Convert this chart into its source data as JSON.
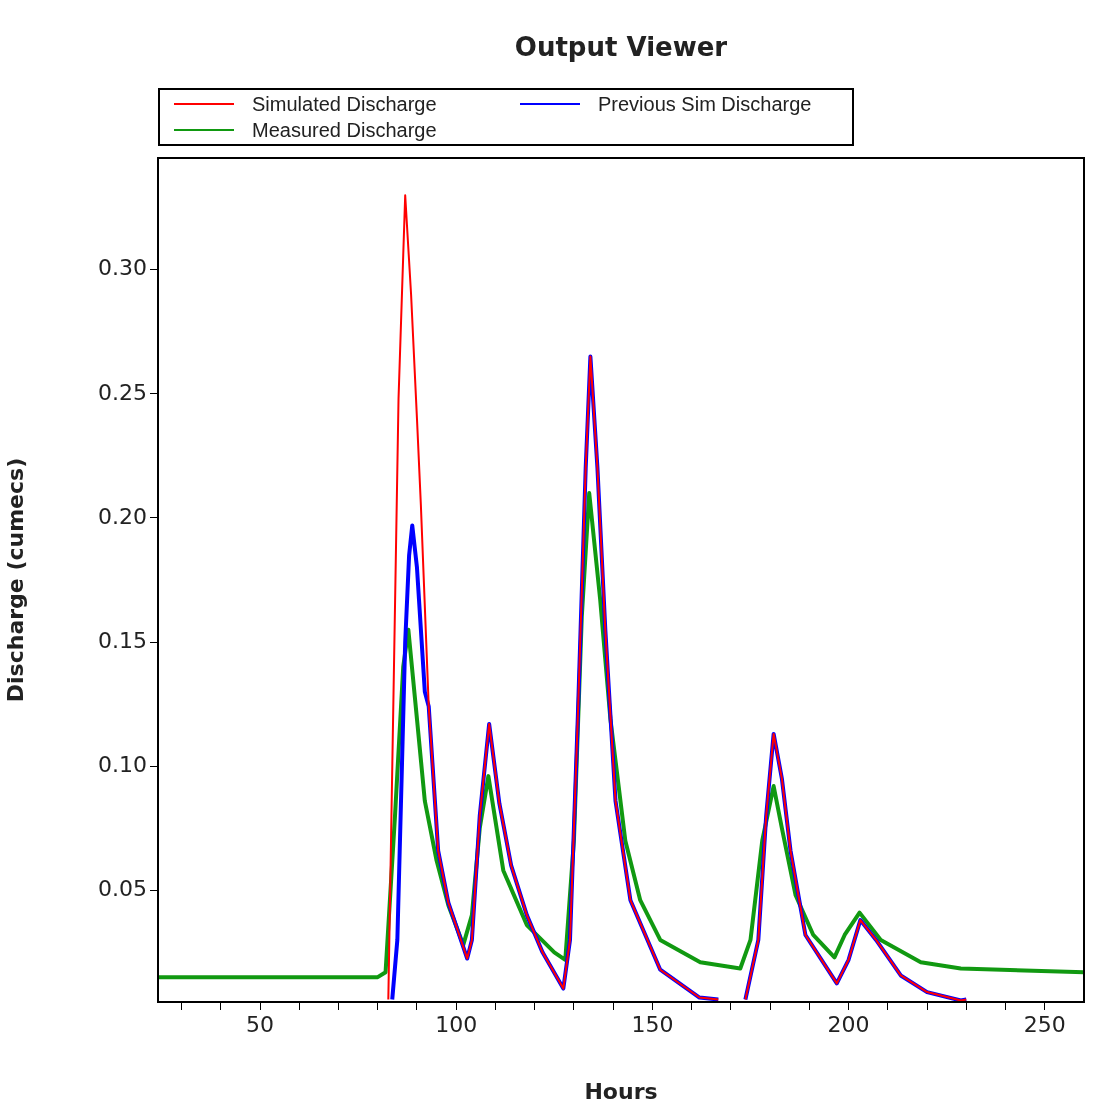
{
  "chart_data": {
    "type": "line",
    "title": "Output Viewer",
    "xlabel": "Hours",
    "ylabel": "Discharge (cumecs)",
    "xlim": [
      24,
      260
    ],
    "ylim": [
      0.005,
      0.345
    ],
    "xticks": [
      {
        "value": 30,
        "label": null
      },
      {
        "value": 40,
        "label": null
      },
      50,
      {
        "value": 60,
        "label": null
      },
      {
        "value": 70,
        "label": null
      },
      {
        "value": 80,
        "label": null
      },
      {
        "value": 90,
        "label": null
      },
      100,
      {
        "value": 110,
        "label": null
      },
      {
        "value": 120,
        "label": null
      },
      {
        "value": 130,
        "label": null
      },
      {
        "value": 140,
        "label": null
      },
      150,
      {
        "value": 160,
        "label": null
      },
      {
        "value": 170,
        "label": null
      },
      {
        "value": 180,
        "label": null
      },
      {
        "value": 190,
        "label": null
      },
      200,
      {
        "value": 210,
        "label": null
      },
      {
        "value": 220,
        "label": null
      },
      {
        "value": 230,
        "label": null
      },
      {
        "value": 240,
        "label": null
      },
      250
    ],
    "yticks": [
      {
        "value": 0.05,
        "label": "0.05"
      },
      {
        "value": 0.1,
        "label": "0.10"
      },
      {
        "value": 0.15,
        "label": "0.15"
      },
      {
        "value": 0.2,
        "label": "0.20"
      },
      {
        "value": 0.25,
        "label": "0.25"
      },
      {
        "value": 0.3,
        "label": "0.30"
      }
    ],
    "legend": "top",
    "grid": false,
    "marker": "none",
    "line_style": "solid",
    "series": [
      {
        "name": "Measured Discharge",
        "color": "#119911",
        "x": [
          24,
          80,
          82,
          84.4,
          86.5,
          87.8,
          90,
          92,
          95,
          98,
          101.8,
          104,
          106,
          108.2,
          112,
          118,
          125,
          127.8,
          130,
          132,
          133.9,
          136.7,
          139.3,
          143.1,
          146.9,
          152,
          162.2,
          172.4,
          175,
          178,
          180.9,
          183,
          186.5,
          191,
          196.4,
          199,
          202.8,
          208.2,
          218.4,
          228.6,
          260
        ],
        "values": [
          0.015,
          0.015,
          0.017,
          0.08,
          0.14,
          0.155,
          0.119,
          0.086,
          0.062,
          0.044,
          0.028,
          0.04,
          0.075,
          0.096,
          0.058,
          0.036,
          0.025,
          0.022,
          0.07,
          0.16,
          0.21,
          0.167,
          0.119,
          0.07,
          0.046,
          0.03,
          0.021,
          0.0185,
          0.03,
          0.07,
          0.092,
          0.075,
          0.048,
          0.032,
          0.023,
          0.032,
          0.041,
          0.03,
          0.021,
          0.0185,
          0.017
        ]
      },
      {
        "name": "Previous Sim Discharge",
        "color": "#0000ff",
        "x": [
          83.7,
          85,
          86,
          87,
          88,
          88.8,
          90,
          91,
          92,
          93,
          95.4,
          98,
          102.8,
          104,
          106,
          108.4,
          111,
          114,
          118,
          122,
          127.3,
          129,
          131,
          133,
          134.2,
          136,
          138,
          140.6,
          144.4,
          152,
          162,
          166.8,
          170,
          173.7,
          177,
          179,
          180.9,
          183,
          185.2,
          189,
          197,
          200,
          203,
          207,
          213.3,
          220,
          228.6,
          230
        ],
        "values": [
          0.006,
          0.03,
          0.09,
          0.15,
          0.185,
          0.197,
          0.18,
          0.155,
          0.13,
          0.124,
          0.066,
          0.045,
          0.0225,
          0.03,
          0.08,
          0.117,
          0.085,
          0.06,
          0.04,
          0.025,
          0.0104,
          0.03,
          0.12,
          0.22,
          0.265,
          0.22,
          0.155,
          0.086,
          0.046,
          0.018,
          0.0068,
          0.006,
          null,
          0.006,
          0.03,
          0.08,
          0.113,
          0.095,
          0.066,
          0.032,
          0.0125,
          0.022,
          0.038,
          0.03,
          0.0157,
          0.009,
          0.0056,
          0.006
        ]
      },
      {
        "name": "Simulated Discharge",
        "color": "#ff0000",
        "x": [
          82.7,
          84,
          85.3,
          87,
          88.5,
          90,
          91,
          93,
          95.4,
          98,
          102.8,
          104,
          106,
          108.4,
          111,
          114,
          118,
          122,
          127.3,
          129,
          131,
          133,
          134.2,
          136,
          138,
          140.6,
          144.4,
          152,
          162,
          166.8,
          170,
          173.7,
          177,
          179,
          180.9,
          183,
          185.2,
          189,
          197,
          200,
          203,
          207,
          213.3,
          220,
          228.6,
          230
        ],
        "values": [
          0.006,
          0.127,
          0.248,
          0.33,
          0.29,
          0.24,
          0.205,
          0.124,
          0.066,
          0.045,
          0.0225,
          0.03,
          0.08,
          0.117,
          0.085,
          0.06,
          0.04,
          0.025,
          0.0104,
          0.03,
          0.12,
          0.22,
          0.265,
          0.22,
          0.155,
          0.086,
          0.046,
          0.018,
          0.0068,
          0.006,
          null,
          0.006,
          0.03,
          0.08,
          0.113,
          0.095,
          0.066,
          0.032,
          0.0125,
          0.022,
          0.038,
          0.03,
          0.0157,
          0.009,
          0.0056,
          0.006
        ]
      }
    ]
  }
}
